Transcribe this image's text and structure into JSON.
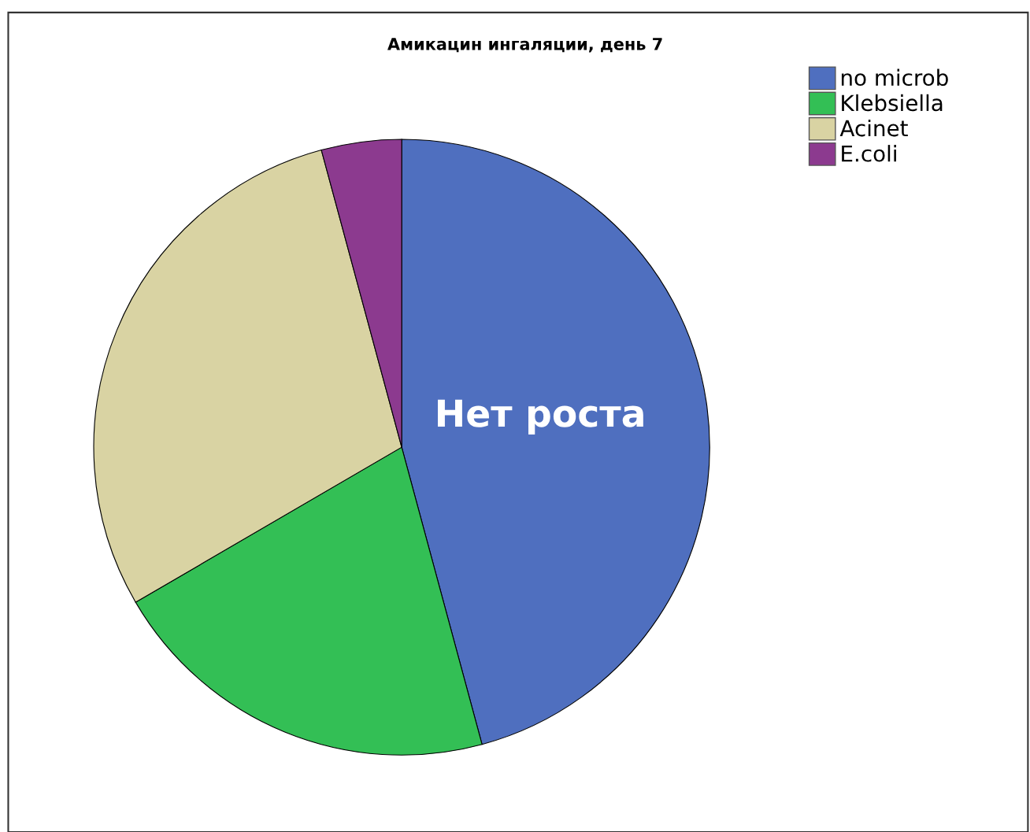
{
  "chart_data": {
    "type": "pie",
    "title": "Амикацин ингаляции, день 7",
    "categories": [
      "no microb",
      "Klebsiella",
      "Acinet",
      "E.coli"
    ],
    "values": [
      45.8,
      20.8,
      29.2,
      4.2
    ],
    "colors": [
      "#4f6fbf",
      "#33bf55",
      "#d9d3a3",
      "#8c3a8f"
    ],
    "legend": "top right",
    "annotations": [
      "Нет роста"
    ]
  }
}
